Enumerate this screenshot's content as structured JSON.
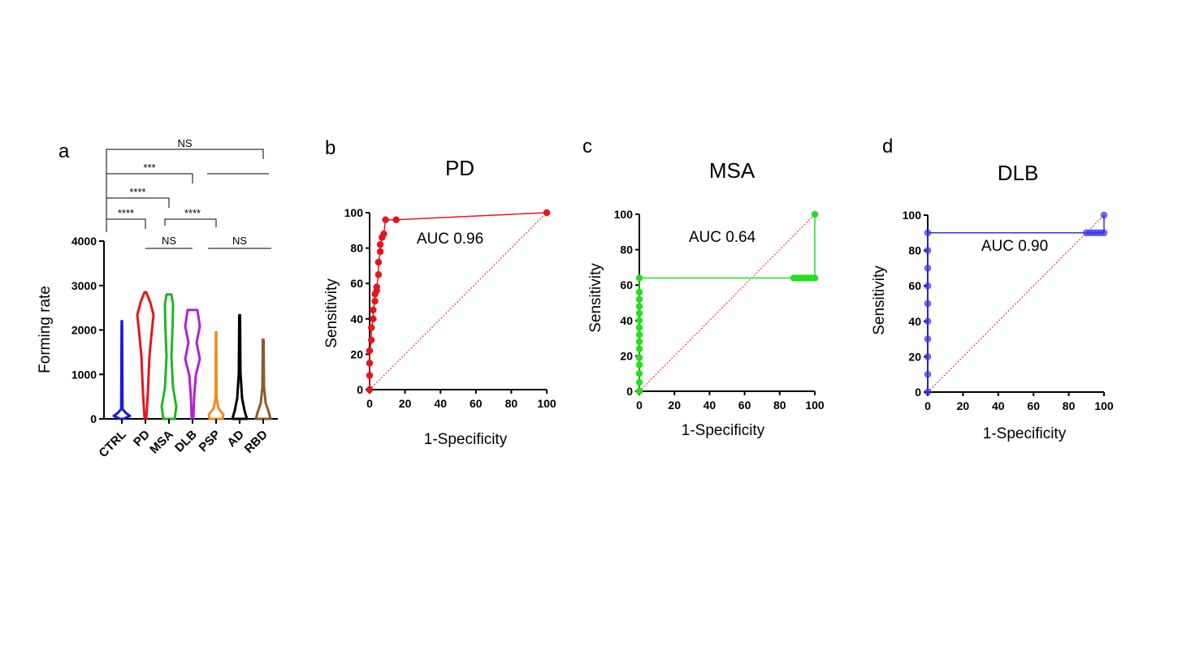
{
  "chart_data": [
    {
      "panel": "a",
      "type": "violin",
      "ylabel": "Forming rate",
      "ylim": [
        0,
        4000
      ],
      "yticks": [
        "0",
        "1000",
        "2000",
        "3000",
        "4000"
      ],
      "categories": [
        "CTRL",
        "PD",
        "MSA",
        "DLB",
        "PSP",
        "AD",
        "RBD"
      ],
      "colors": [
        "#1a1adf",
        "#e8141b",
        "#22b522",
        "#b31fd6",
        "#f28a1b",
        "#000000",
        "#8b5a2b"
      ],
      "max_values": [
        2200,
        2850,
        2800,
        2450,
        1950,
        2330,
        1780
      ],
      "comparisons": [
        {
          "from": "CTRL",
          "to": "RBD",
          "label": "NS"
        },
        {
          "from": "CTRL",
          "to": "DLB",
          "label": "***"
        },
        {
          "from": "CTRL",
          "to": "MSA",
          "label": "****"
        },
        {
          "from": "CTRL",
          "to": "PD",
          "label": "****"
        },
        {
          "from": "MSA",
          "to": "PSP",
          "label": "****"
        },
        {
          "from": "PD",
          "to": "DLB",
          "label": "NS"
        },
        {
          "from": "PSP",
          "to": "RBD",
          "label": "NS"
        }
      ]
    },
    {
      "panel": "b",
      "type": "line",
      "title": "PD",
      "annotation": "AUC 0.96",
      "xlabel": "1-Specificity",
      "ylabel": "Sensitivity",
      "xlim": [
        0,
        100
      ],
      "ylim": [
        0,
        100
      ],
      "xticks": [
        "0",
        "20",
        "40",
        "60",
        "80",
        "100"
      ],
      "yticks": [
        "0",
        "20",
        "40",
        "60",
        "80",
        "100"
      ],
      "color": "#e8141b",
      "x": [
        0,
        0,
        0,
        0,
        1,
        1,
        2,
        2,
        3,
        3,
        4,
        4,
        5,
        5,
        6,
        6,
        7,
        8,
        9,
        15,
        100
      ],
      "y": [
        0,
        8,
        15,
        22,
        28,
        35,
        40,
        45,
        50,
        54,
        56,
        58,
        65,
        72,
        78,
        82,
        86,
        88,
        96,
        96,
        100
      ]
    },
    {
      "panel": "c",
      "type": "line",
      "title": "MSA",
      "annotation": "AUC 0.64",
      "xlabel": "1-Specificity",
      "ylabel": "Sensitivity",
      "xlim": [
        0,
        100
      ],
      "ylim": [
        0,
        100
      ],
      "xticks": [
        "0",
        "20",
        "40",
        "60",
        "80",
        "100"
      ],
      "yticks": [
        "0",
        "20",
        "40",
        "60",
        "80",
        "100"
      ],
      "color": "#22e01a",
      "x": [
        0,
        0,
        0,
        0,
        0,
        0,
        0,
        0,
        0,
        0,
        0,
        0,
        0,
        0,
        0,
        88,
        90,
        92,
        94,
        96,
        98,
        100,
        100
      ],
      "y": [
        0,
        5,
        10,
        15,
        19,
        24,
        28,
        32,
        36,
        40,
        44,
        48,
        52,
        56,
        64,
        64,
        64,
        64,
        64,
        64,
        64,
        64,
        100
      ]
    },
    {
      "panel": "d",
      "type": "line",
      "title": "DLB",
      "annotation": "AUC 0.90",
      "xlabel": "1-Specificity",
      "ylabel": "Sensitivity",
      "xlim": [
        0,
        100
      ],
      "ylim": [
        0,
        100
      ],
      "xticks": [
        "0",
        "20",
        "40",
        "60",
        "80",
        "100"
      ],
      "yticks": [
        "0",
        "20",
        "40",
        "60",
        "80",
        "100"
      ],
      "color": "#3333ee",
      "x": [
        0,
        0,
        0,
        0,
        0,
        0,
        0,
        0,
        0,
        0,
        90,
        92,
        94,
        96,
        98,
        100,
        100
      ],
      "y": [
        0,
        10,
        20,
        30,
        40,
        50,
        60,
        70,
        80,
        90,
        90,
        90,
        90,
        90,
        90,
        90,
        100
      ]
    }
  ]
}
